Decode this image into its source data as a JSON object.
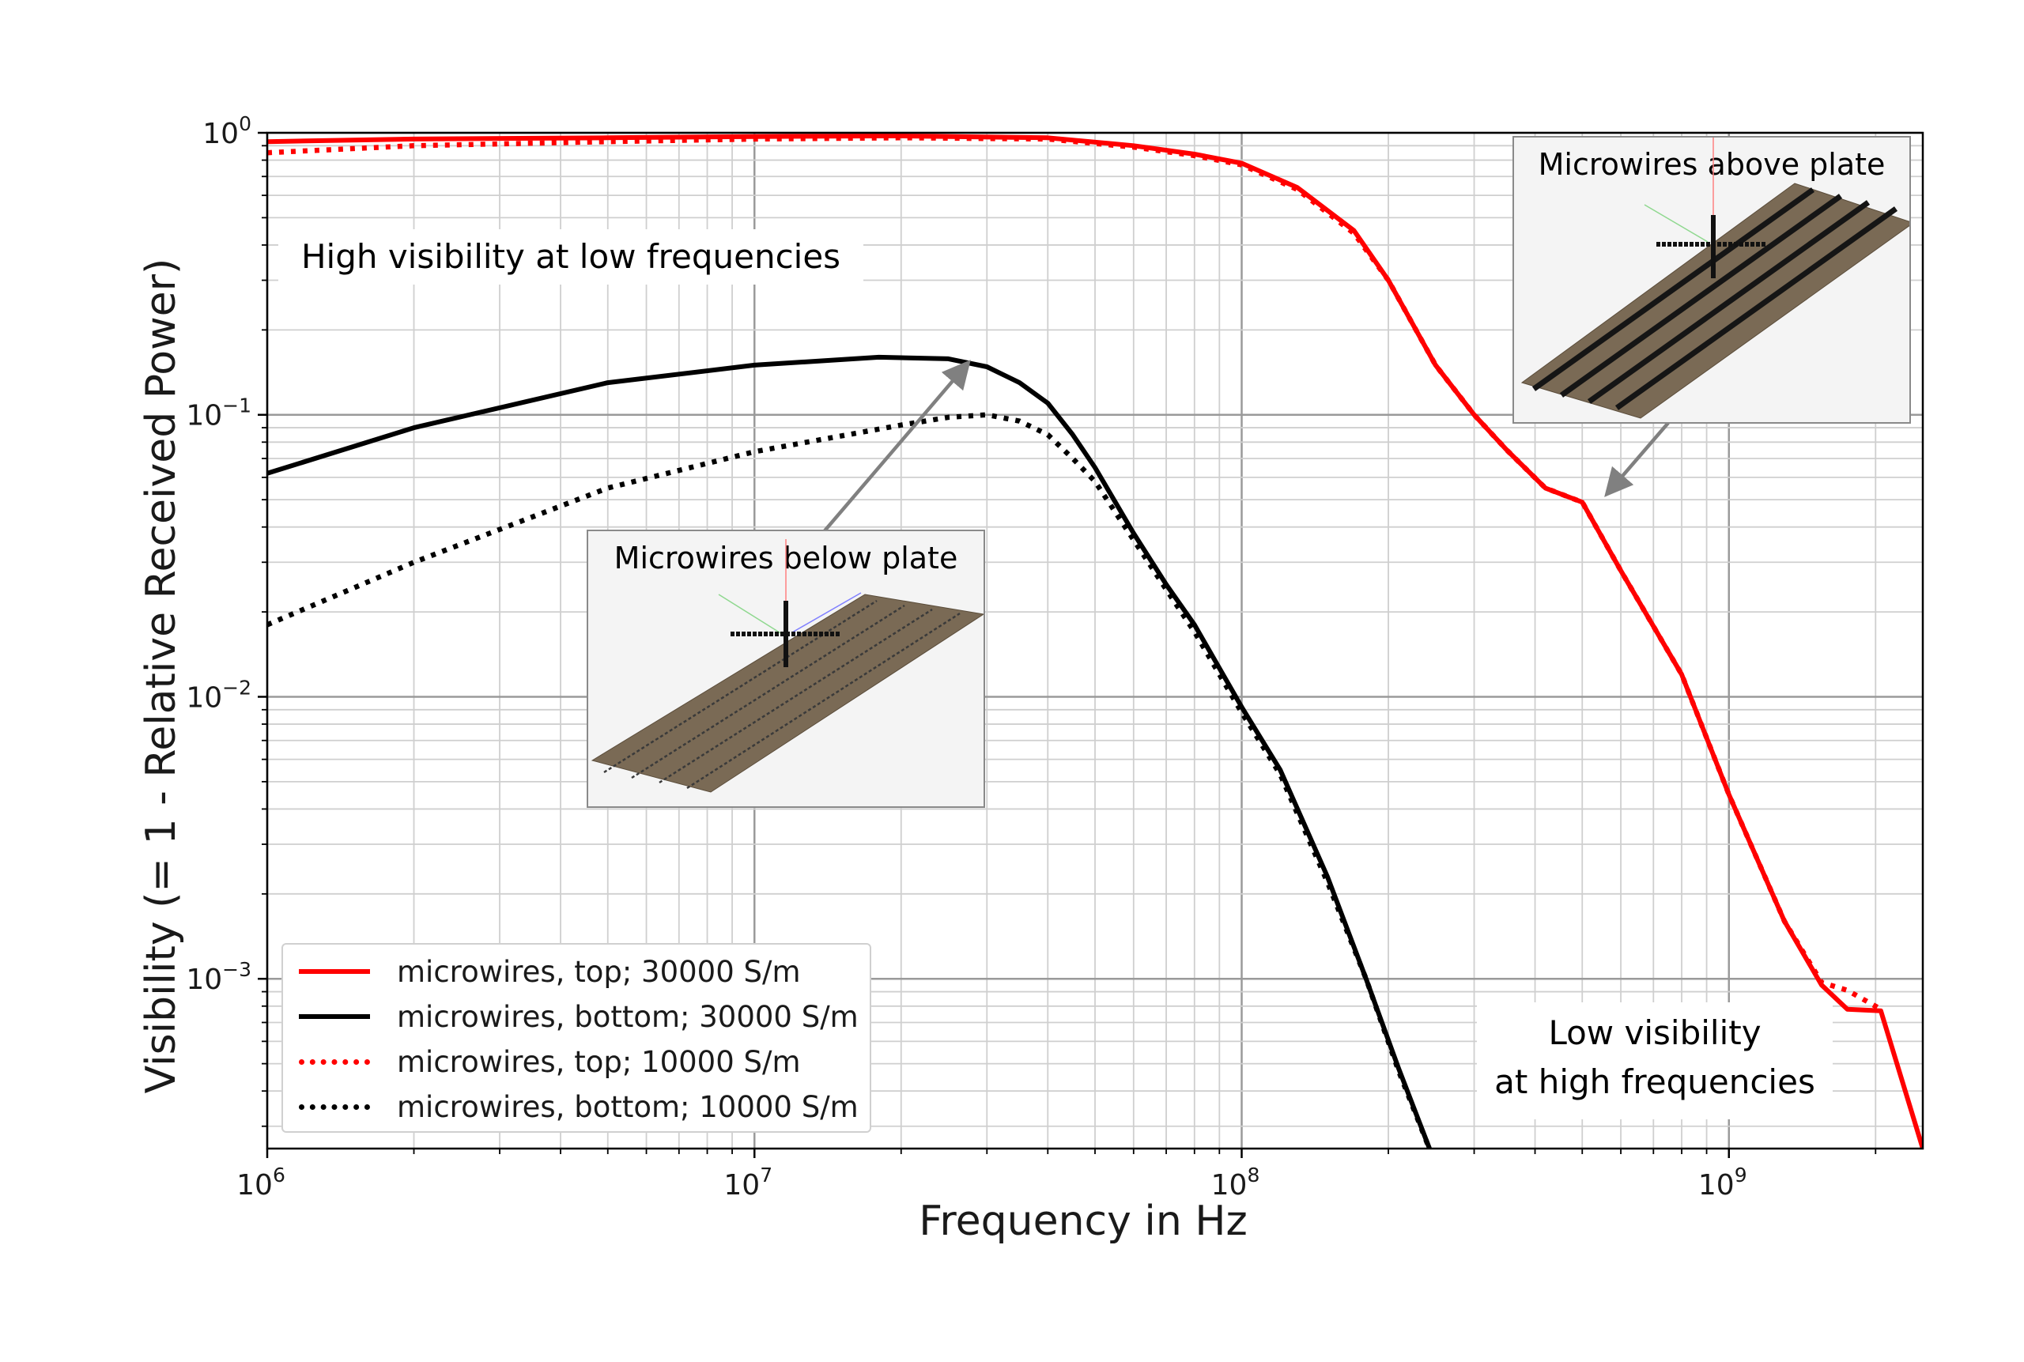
{
  "chart_data": {
    "type": "line",
    "xscale": "log",
    "yscale": "log",
    "xlim": [
      1000000,
      2500000000
    ],
    "ylim": [
      0.00025,
      1.0
    ],
    "xlabel": "Frequency in Hz",
    "ylabel": "Visibility (= 1 - Relative Received Power)",
    "grid": true,
    "x_ticks": [
      {
        "value": 1000000,
        "base": "10",
        "exp": "6"
      },
      {
        "value": 10000000,
        "base": "10",
        "exp": "7"
      },
      {
        "value": 100000000,
        "base": "10",
        "exp": "8"
      },
      {
        "value": 1000000000,
        "base": "10",
        "exp": "9"
      }
    ],
    "y_ticks": [
      {
        "value": 1.0,
        "base": "10",
        "exp": "0"
      },
      {
        "value": 0.1,
        "base": "10",
        "exp": "−1"
      },
      {
        "value": 0.01,
        "base": "10",
        "exp": "−2"
      },
      {
        "value": 0.001,
        "base": "10",
        "exp": "−3"
      }
    ],
    "legend_position": "lower-left",
    "series": [
      {
        "name": "microwires, top; 30000 S/m",
        "color": "#ff0000",
        "style": "solid",
        "x": [
          1000000,
          2000000,
          5000000,
          10000000,
          20000000,
          40000000,
          60000000,
          80000000,
          100000000,
          130000000,
          170000000,
          200000000,
          250000000,
          300000000,
          350000000,
          420000000,
          500000000,
          600000000,
          800000000,
          1000000000,
          1300000000,
          1550000000,
          1750000000,
          2050000000,
          2500000000
        ],
        "y": [
          0.93,
          0.95,
          0.96,
          0.97,
          0.975,
          0.96,
          0.9,
          0.84,
          0.78,
          0.64,
          0.45,
          0.3,
          0.15,
          0.1,
          0.075,
          0.055,
          0.049,
          0.028,
          0.012,
          0.0045,
          0.0016,
          0.00095,
          0.00078,
          0.00077,
          0.00025
        ]
      },
      {
        "name": "microwires, bottom; 30000 S/m",
        "color": "#000000",
        "style": "solid",
        "x": [
          1000000,
          2000000,
          5000000,
          10000000,
          18000000,
          25000000,
          30000000,
          35000000,
          40000000,
          45000000,
          50000000,
          60000000,
          70000000,
          80000000,
          100000000,
          120000000,
          150000000,
          180000000,
          210000000,
          250000000
        ],
        "y": [
          0.062,
          0.09,
          0.13,
          0.15,
          0.16,
          0.158,
          0.148,
          0.13,
          0.11,
          0.085,
          0.065,
          0.038,
          0.025,
          0.018,
          0.0092,
          0.0055,
          0.0023,
          0.001,
          0.00048,
          0.00022
        ]
      },
      {
        "name": "microwires, top; 10000 S/m",
        "color": "#ff0000",
        "style": "dotted",
        "x": [
          1000000,
          2000000,
          5000000,
          10000000,
          20000000,
          40000000,
          60000000,
          80000000,
          100000000,
          130000000,
          170000000,
          200000000,
          250000000,
          300000000,
          350000000,
          420000000,
          500000000,
          600000000,
          800000000,
          1000000000,
          1300000000,
          1550000000,
          1750000000,
          2050000000
        ],
        "y": [
          0.85,
          0.9,
          0.93,
          0.95,
          0.96,
          0.95,
          0.89,
          0.83,
          0.77,
          0.63,
          0.44,
          0.3,
          0.15,
          0.1,
          0.075,
          0.055,
          0.049,
          0.028,
          0.012,
          0.0045,
          0.0016,
          0.00097,
          0.00091,
          0.00078
        ]
      },
      {
        "name": "microwires, bottom; 10000 S/m",
        "color": "#000000",
        "style": "dotted",
        "x": [
          1000000,
          2000000,
          5000000,
          10000000,
          20000000,
          25000000,
          30000000,
          35000000,
          40000000,
          45000000,
          50000000,
          60000000,
          70000000,
          80000000,
          100000000,
          120000000,
          150000000,
          180000000,
          210000000,
          250000000
        ],
        "y": [
          0.018,
          0.03,
          0.055,
          0.074,
          0.092,
          0.098,
          0.1,
          0.095,
          0.085,
          0.07,
          0.058,
          0.036,
          0.024,
          0.017,
          0.0088,
          0.0053,
          0.0022,
          0.001,
          0.00047,
          0.00022
        ]
      }
    ],
    "annotations": {
      "high_visibility": "High visibility at low frequencies",
      "low_visibility_line1": "Low visibility",
      "low_visibility_line2": "at high frequencies",
      "inset_below_title": "Microwires below plate",
      "inset_above_title": "Microwires above plate"
    }
  }
}
